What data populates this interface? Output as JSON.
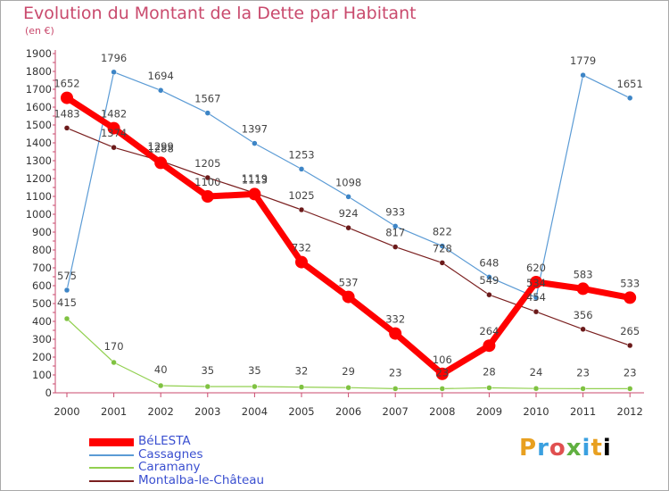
{
  "chart_data": {
    "type": "line",
    "title": "Evolution du Montant de la Dette par Habitant",
    "unit_label": "(en €)",
    "x": [
      "2000",
      "2001",
      "2002",
      "2003",
      "2004",
      "2005",
      "2006",
      "2007",
      "2008",
      "2009",
      "2010",
      "2011",
      "2012"
    ],
    "ylim": [
      0,
      1900
    ],
    "yticks": [
      0,
      100,
      200,
      300,
      400,
      500,
      600,
      700,
      800,
      900,
      1000,
      1100,
      1200,
      1300,
      1400,
      1500,
      1600,
      1700,
      1800,
      1900
    ],
    "grid": false,
    "legend_position": "bottom-left",
    "series": [
      {
        "name": "BéLESTA",
        "color": "#ff0000",
        "values": [
          1652,
          1482,
          1288,
          1100,
          1113,
          732,
          537,
          332,
          106,
          264,
          620,
          583,
          533
        ],
        "labels": [
          "1652",
          "1482",
          "1288",
          "1100",
          "1113",
          "732",
          "537",
          "332",
          "106",
          "264",
          "620",
          "583",
          "533"
        ]
      },
      {
        "name": "Cassagnes",
        "color": "#5b9bd5",
        "values": [
          575,
          1796,
          1694,
          1567,
          1397,
          1253,
          1098,
          933,
          822,
          648,
          534,
          1779,
          1651
        ],
        "labels": [
          "575",
          "1796",
          "1694",
          "1567",
          "1397",
          "1253",
          "1098",
          "933",
          "822",
          "648",
          "534",
          "1779",
          "1651"
        ]
      },
      {
        "name": "Caramany",
        "color": "#92d050",
        "values": [
          415,
          170,
          40,
          35,
          35,
          32,
          29,
          23,
          23,
          28,
          24,
          23,
          23
        ],
        "labels": [
          "415",
          "170",
          "40",
          "35",
          "35",
          "32",
          "29",
          "23",
          "23",
          "28",
          "24",
          "23",
          "23"
        ]
      },
      {
        "name": "Montalba-le-Château",
        "color": "#7a1f1f",
        "values": [
          1483,
          1374,
          1299,
          1205,
          1119,
          1025,
          924,
          817,
          728,
          549,
          454,
          356,
          265
        ],
        "labels": [
          "1483",
          "1374",
          "1299",
          "1205",
          "1119",
          "1025",
          "924",
          "817",
          "728",
          "549",
          "454",
          "356",
          "265"
        ]
      }
    ]
  },
  "logo": {
    "letters": [
      "P",
      "r",
      "o",
      "x",
      "i",
      "t",
      "i"
    ]
  }
}
